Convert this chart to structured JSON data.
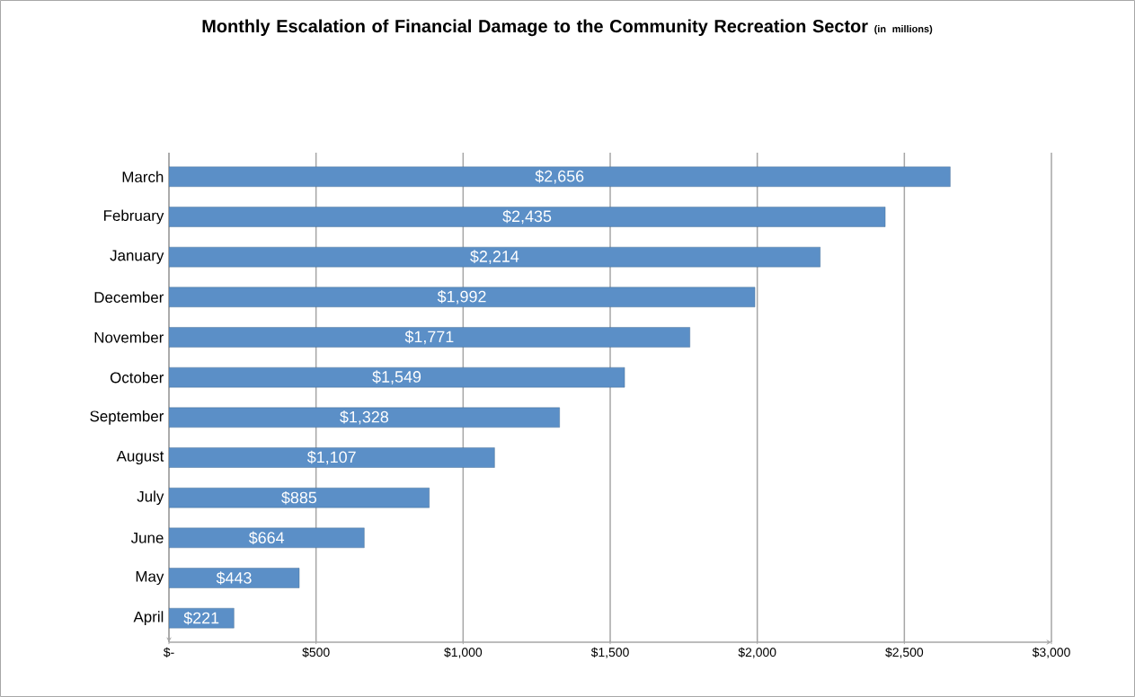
{
  "chart_data": {
    "type": "bar",
    "orientation": "horizontal",
    "title": "Monthly Escalation of Financial Damage to the Community Recreation Sector",
    "subtitle": "(in millions)",
    "categories": [
      "March",
      "February",
      "January",
      "December",
      "November",
      "October",
      "September",
      "August",
      "July",
      "June",
      "May",
      "April"
    ],
    "values": [
      2656,
      2435,
      2214,
      1992,
      1771,
      1549,
      1328,
      1107,
      885,
      664,
      443,
      221
    ],
    "value_labels": [
      "$2,656",
      "$2,435",
      "$2,214",
      "$1,992",
      "$1,771",
      "$1,549",
      "$1,328",
      "$1,107",
      "$885",
      "$664",
      "$443",
      "$221"
    ],
    "color": "#5b8fc7",
    "xlim": [
      0,
      3000
    ],
    "xticks": [
      {
        "value": 0,
        "label": "$-"
      },
      {
        "value": 500,
        "label": "$500"
      },
      {
        "value": 1000,
        "label": "$1,000"
      },
      {
        "value": 1500,
        "label": "$1,500"
      },
      {
        "value": 2000,
        "label": "$2,000"
      },
      {
        "value": 2500,
        "label": "$2,500"
      },
      {
        "value": 3000,
        "label": "$3,000"
      }
    ],
    "grid": "x"
  }
}
